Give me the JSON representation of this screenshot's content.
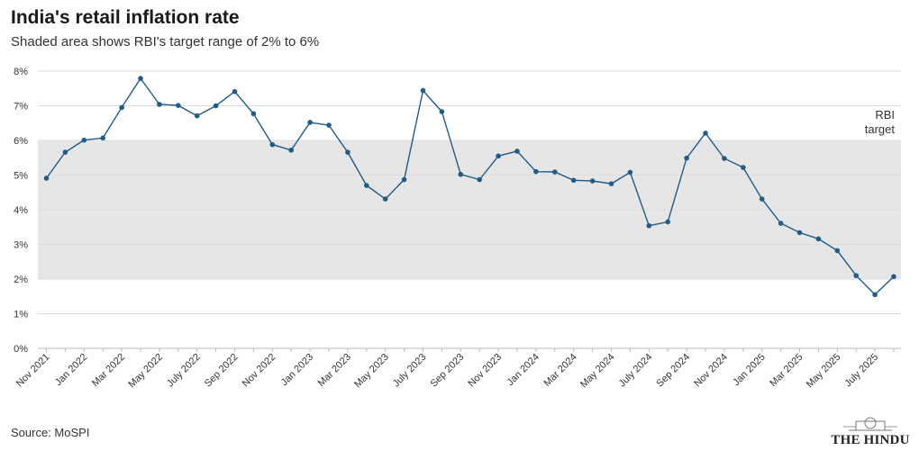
{
  "title": "India's retail inflation rate",
  "subtitle": "Shaded area shows RBI's target range of 2% to 6%",
  "source": "Source: MoSPI",
  "logo": "THE HINDU",
  "colors": {
    "line": "#1f5c87",
    "band": "#e6e6e6",
    "grid": "#dddddd"
  },
  "chart_data": {
    "type": "line",
    "series": [
      {
        "values": [
          4.91,
          5.66,
          6.01,
          6.07,
          6.95,
          7.79,
          7.04,
          7.01,
          6.71,
          7.0,
          7.41,
          6.77,
          5.88,
          5.72,
          6.52,
          6.44,
          5.66,
          4.7,
          4.31,
          4.87,
          7.44,
          6.83,
          5.02,
          4.87,
          5.55,
          5.69,
          5.1,
          5.09,
          4.85,
          4.83,
          4.75,
          5.08,
          3.54,
          3.65,
          5.49,
          6.21,
          5.48,
          5.22,
          4.31,
          3.61,
          3.34,
          3.16,
          2.82,
          2.1,
          1.55,
          2.07
        ]
      }
    ],
    "x_tick_labels": [
      "Nov 2021",
      "Jan 2022",
      "Mar 2022",
      "May 2022",
      "July 2022",
      "Sep 2022",
      "Nov 2022",
      "Jan 2023",
      "Mar 2023",
      "May 2023",
      "July 2023",
      "Sep 2023",
      "Nov 2023",
      "Jan 2024",
      "Mar 2024",
      "May 2024",
      "July 2024",
      "Sep 2024",
      "Nov 2024",
      "Jan 2025",
      "Mar 2025",
      "May 2025",
      "July 2025"
    ],
    "y_tick_labels": [
      "0%",
      "1%",
      "2%",
      "3%",
      "4%",
      "5%",
      "6%",
      "7%",
      "8%"
    ],
    "ylim": [
      0,
      8
    ],
    "target_band": [
      2,
      6
    ],
    "band_label": [
      "RBI",
      "target"
    ],
    "grid": true
  }
}
